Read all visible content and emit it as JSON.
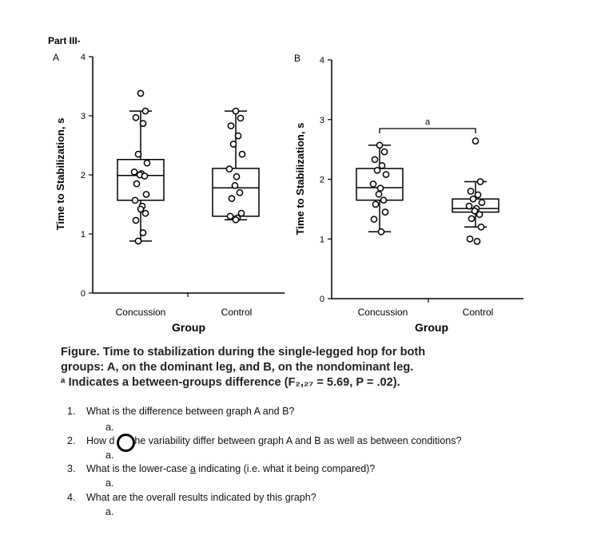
{
  "part_title": "Part III-",
  "chart_data": [
    {
      "type": "boxplot",
      "panel_label": "A",
      "ylabel": "Time to Stabilization, s",
      "xlabel": "Group",
      "categories": [
        "Concussion",
        "Control"
      ],
      "ylim": [
        0,
        4
      ],
      "yticks": [
        "0",
        "1",
        "2",
        "3",
        "4"
      ],
      "series": [
        {
          "name": "Concussion",
          "whisker_low": 0.88,
          "q1": 1.57,
          "median": 1.99,
          "q3": 2.26,
          "whisker_high": 3.08,
          "points": [
            3.38,
            3.08,
            2.97,
            2.87,
            2.35,
            2.2,
            2.05,
            2.02,
            2.0,
            1.98,
            1.85,
            1.67,
            1.57,
            1.47,
            1.42,
            1.35,
            1.23,
            1.02,
            0.88
          ]
        },
        {
          "name": "Control",
          "whisker_low": 1.24,
          "q1": 1.3,
          "median": 1.78,
          "q3": 2.11,
          "whisker_high": 3.08,
          "points": [
            3.08,
            2.96,
            2.83,
            2.66,
            2.52,
            2.35,
            2.1,
            1.97,
            1.82,
            1.7,
            1.6,
            1.35,
            1.3,
            1.27,
            1.24
          ]
        }
      ]
    },
    {
      "type": "boxplot",
      "panel_label": "B",
      "ylabel": "Time to Stabilization, s",
      "xlabel": "Group",
      "categories": [
        "Concussion",
        "Control"
      ],
      "ylim": [
        0,
        4
      ],
      "yticks": [
        "0",
        "1",
        "2",
        "3",
        "4"
      ],
      "significance_label": "a",
      "series": [
        {
          "name": "Concussion",
          "whisker_low": 1.12,
          "q1": 1.65,
          "median": 1.86,
          "q3": 2.18,
          "whisker_high": 2.57,
          "points": [
            2.57,
            2.46,
            2.33,
            2.23,
            2.15,
            2.08,
            1.92,
            1.85,
            1.75,
            1.65,
            1.58,
            1.45,
            1.33,
            1.12
          ]
        },
        {
          "name": "Control",
          "whisker_low": 1.2,
          "q1": 1.45,
          "median": 1.51,
          "q3": 1.67,
          "whisker_high": 1.96,
          "points": [
            2.64,
            1.96,
            1.8,
            1.74,
            1.67,
            1.61,
            1.55,
            1.51,
            1.47,
            1.41,
            1.34,
            1.2,
            1.0,
            0.96
          ]
        }
      ]
    }
  ],
  "caption": {
    "line1": "Figure.  Time to stabilization during the single-legged hop for both",
    "line2": "groups: A, on the dominant leg, and B, on the nondominant leg.",
    "line3": "ᵃ Indicates a between-groups difference (F₂,₂₇ = 5.69, P = .02)."
  },
  "questions": [
    {
      "num": "1.",
      "text": "What is the difference between graph A and B?",
      "sub": "a."
    },
    {
      "num": "2.",
      "text_pre": "How d",
      "text_post": " the variability differ between graph A and B as well as between conditions?",
      "sub": "a."
    },
    {
      "num": "3.",
      "text_pre": "What is the lower-case ",
      "text_underline": "a",
      "text_post": " indicating (i.e. what it being compared)?",
      "sub": "a."
    },
    {
      "num": "4.",
      "text": "What are the overall results indicated by this graph?",
      "sub": "a."
    }
  ]
}
